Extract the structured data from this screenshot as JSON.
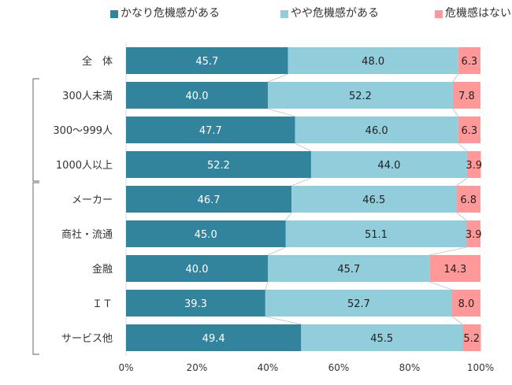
{
  "chart_data": {
    "type": "bar",
    "orientation": "horizontal",
    "stacked": "percent",
    "title": "",
    "xlabel": "",
    "ylabel": "",
    "xlim": [
      0,
      100
    ],
    "x_ticks": [
      "0%",
      "20%",
      "40%",
      "60%",
      "80%",
      "100%"
    ],
    "grid": false,
    "legend_position": "top",
    "categories": [
      "全　体",
      "300人未満",
      "300～999人",
      "1000人以上",
      "メーカー",
      "商社・流通",
      "金融",
      "ＩＴ",
      "サービス他"
    ],
    "brackets": [
      {
        "from": 1,
        "to": 3
      },
      {
        "from": 4,
        "to": 8
      }
    ],
    "series": [
      {
        "name": "かなり危機感がある",
        "color": "#31849B",
        "label_color": "#FFFFFF",
        "values": [
          45.7,
          40.0,
          47.7,
          52.2,
          46.7,
          45.0,
          40.0,
          39.3,
          49.4
        ],
        "labels": [
          "45.7",
          "40.0",
          "47.7",
          "52.2",
          "46.7",
          "45.0",
          "40.0",
          "39.3",
          "49.4"
        ]
      },
      {
        "name": "やや危機感がある",
        "color": "#92CDDC",
        "label_color": "#222222",
        "values": [
          48.0,
          52.2,
          46.0,
          44.0,
          46.5,
          51.1,
          45.7,
          52.7,
          45.5
        ],
        "labels": [
          "48.0",
          "52.2",
          "46.0",
          "44.0",
          "46.5",
          "51.1",
          "45.7",
          "52.7",
          "45.5"
        ]
      },
      {
        "name": "危機感はない",
        "color": "#FF9999",
        "label_color": "#222222",
        "values": [
          6.3,
          7.8,
          6.3,
          3.9,
          6.8,
          3.9,
          14.3,
          8.0,
          5.2
        ],
        "labels": [
          "6.3",
          "7.8",
          "6.3",
          "3.9",
          "6.8",
          "3.9",
          "14.3",
          "8.0",
          "5.2"
        ]
      }
    ]
  }
}
